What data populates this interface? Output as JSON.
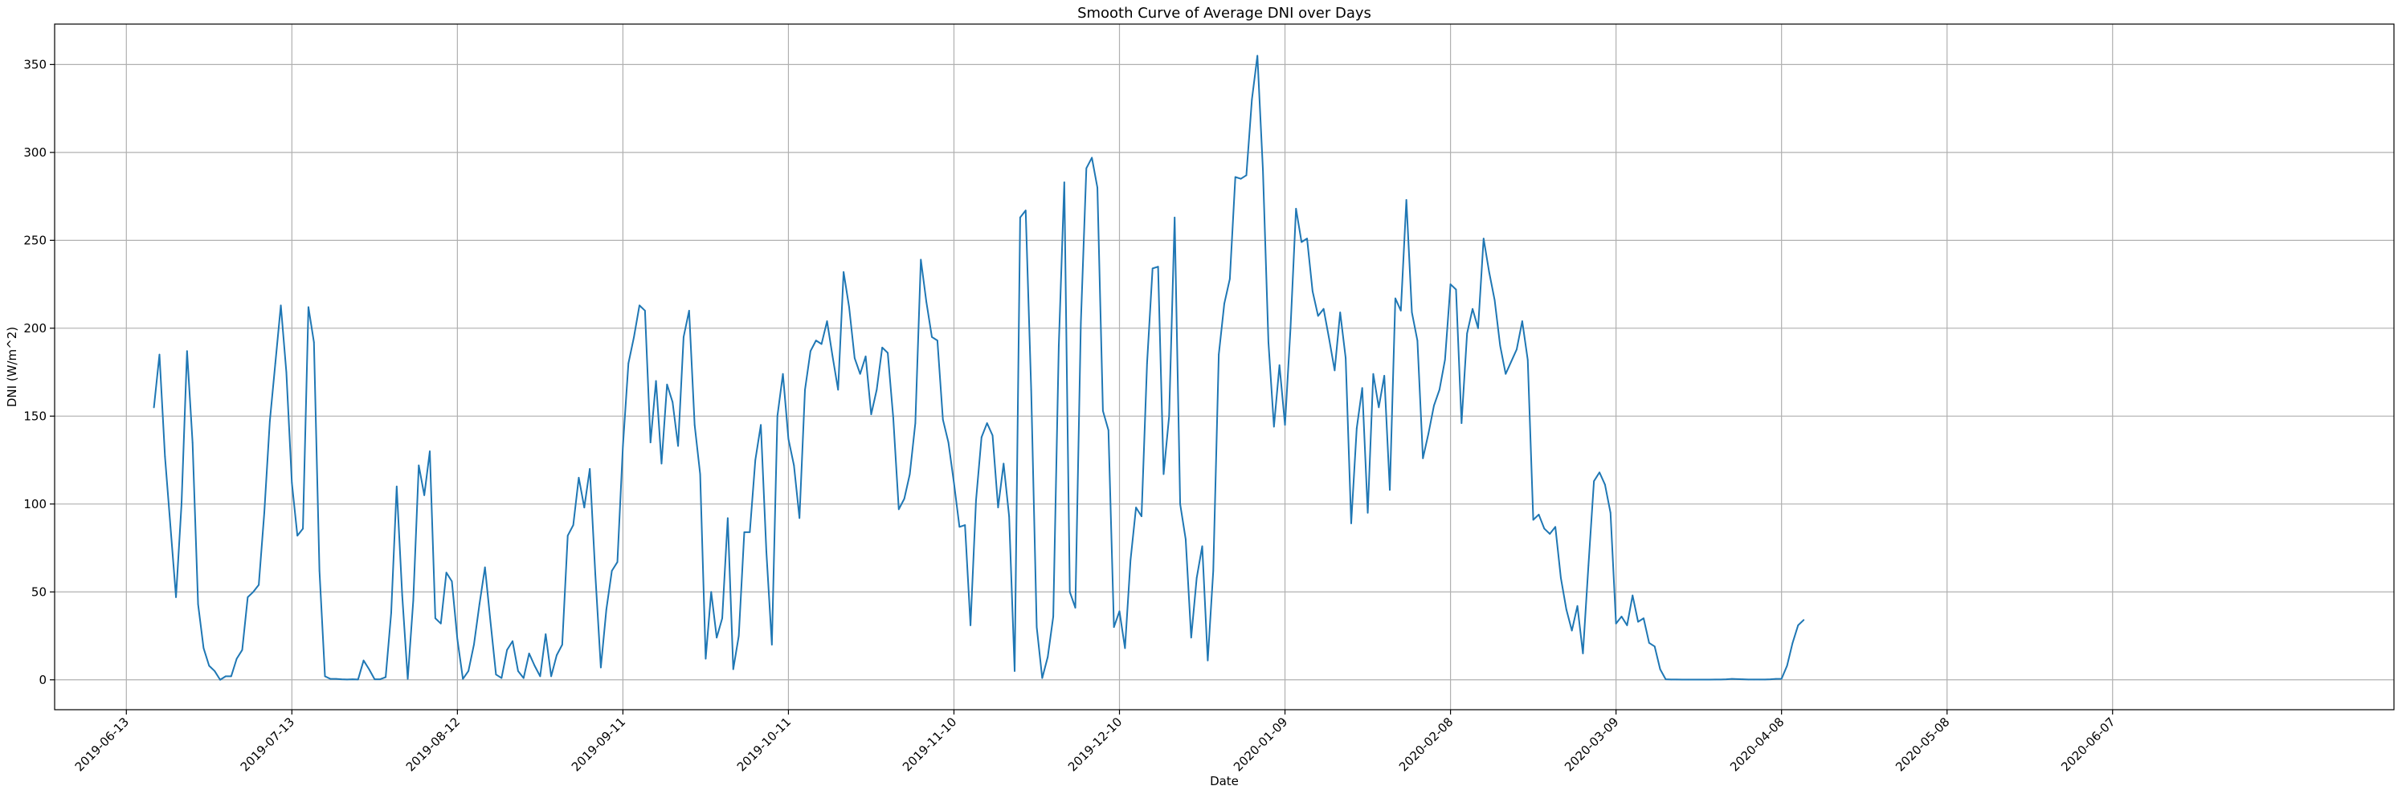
{
  "chart_data": {
    "type": "line",
    "title": "Smooth Curve of Average DNI over Days",
    "xlabel": "Date",
    "ylabel": "DNI (W/m^2)",
    "grid": true,
    "color": "#1f77b4",
    "x_ticks": [
      "2019-06-13",
      "2019-07-13",
      "2019-08-12",
      "2019-09-11",
      "2019-10-11",
      "2019-11-10",
      "2019-12-10",
      "2020-01-09",
      "2020-02-08",
      "2020-03-09",
      "2020-04-08",
      "2020-05-08",
      "2020-06-07"
    ],
    "y_ticks": [
      0,
      50,
      100,
      150,
      200,
      250,
      300,
      350
    ],
    "xlim": [
      "2019-05-31",
      "2020-07-28"
    ],
    "ylim": [
      -17,
      373
    ],
    "start_date": "2019-06-18",
    "series": [
      {
        "values": [
          155,
          185,
          127,
          87,
          47,
          100,
          187,
          135,
          43,
          18,
          8,
          5,
          0,
          2,
          2,
          12,
          17,
          47,
          50,
          54,
          95,
          147,
          180,
          213,
          175,
          112,
          82,
          86,
          212,
          192,
          62,
          2,
          0.5,
          0.5,
          0.3,
          0.2,
          0.3,
          0.2,
          11,
          6,
          0.3,
          0.3,
          1.5,
          38,
          110,
          48,
          0.5,
          45,
          122,
          105,
          130,
          35,
          32,
          61,
          56,
          23,
          0.5,
          5,
          20,
          43,
          64,
          33,
          3,
          1,
          17,
          22,
          5,
          1,
          15,
          8,
          2,
          26,
          2,
          14,
          20,
          82,
          88,
          115,
          98,
          120,
          60,
          7,
          40,
          62,
          67,
          133,
          180,
          195,
          213,
          210,
          135,
          170,
          123,
          168,
          158,
          133,
          195,
          210,
          145,
          117,
          12,
          50,
          24,
          35,
          92,
          6,
          25,
          84,
          84,
          125,
          145,
          73,
          20,
          150,
          174,
          137,
          122,
          92,
          165,
          187,
          193,
          191,
          204,
          184,
          165,
          232,
          212,
          183,
          174,
          184,
          151,
          165,
          189,
          186,
          149,
          97,
          103,
          117,
          146,
          239,
          215,
          195,
          193,
          148,
          135,
          112,
          87,
          88,
          31,
          102,
          138,
          146,
          139,
          98,
          123,
          93,
          5,
          263,
          267,
          165,
          30,
          1,
          13,
          36,
          190,
          283,
          50,
          41,
          203,
          291,
          297,
          280,
          153,
          142,
          30,
          39,
          18,
          68,
          98,
          93,
          180,
          234,
          235,
          117,
          150,
          263,
          100,
          80,
          24,
          58,
          76,
          11,
          62,
          185,
          214,
          228,
          286,
          285,
          287,
          330,
          355,
          290,
          192,
          144,
          179,
          145,
          200,
          268,
          249,
          251,
          221,
          207,
          211,
          194,
          176,
          209,
          183,
          89,
          143,
          166,
          95,
          174,
          155,
          173,
          108,
          217,
          210,
          273,
          209,
          193,
          126,
          140,
          156,
          165,
          182,
          225,
          222,
          146,
          197,
          211,
          200,
          251,
          232,
          216,
          190,
          174,
          181,
          188,
          204,
          182,
          91,
          94,
          86,
          83,
          87,
          58,
          40,
          28,
          42,
          15,
          65,
          113,
          118,
          111,
          95,
          32,
          36,
          31,
          48,
          33,
          35,
          21,
          19,
          6,
          0.3,
          0.2,
          0.2,
          0.1,
          0.1,
          0.1,
          0.1,
          0.1,
          0.1,
          0.2,
          0.2,
          0.3,
          0.5,
          0.4,
          0.3,
          0.2,
          0.2,
          0.2,
          0.2,
          0.3,
          0.5,
          0.6,
          8,
          21,
          31,
          34
        ]
      }
    ]
  }
}
